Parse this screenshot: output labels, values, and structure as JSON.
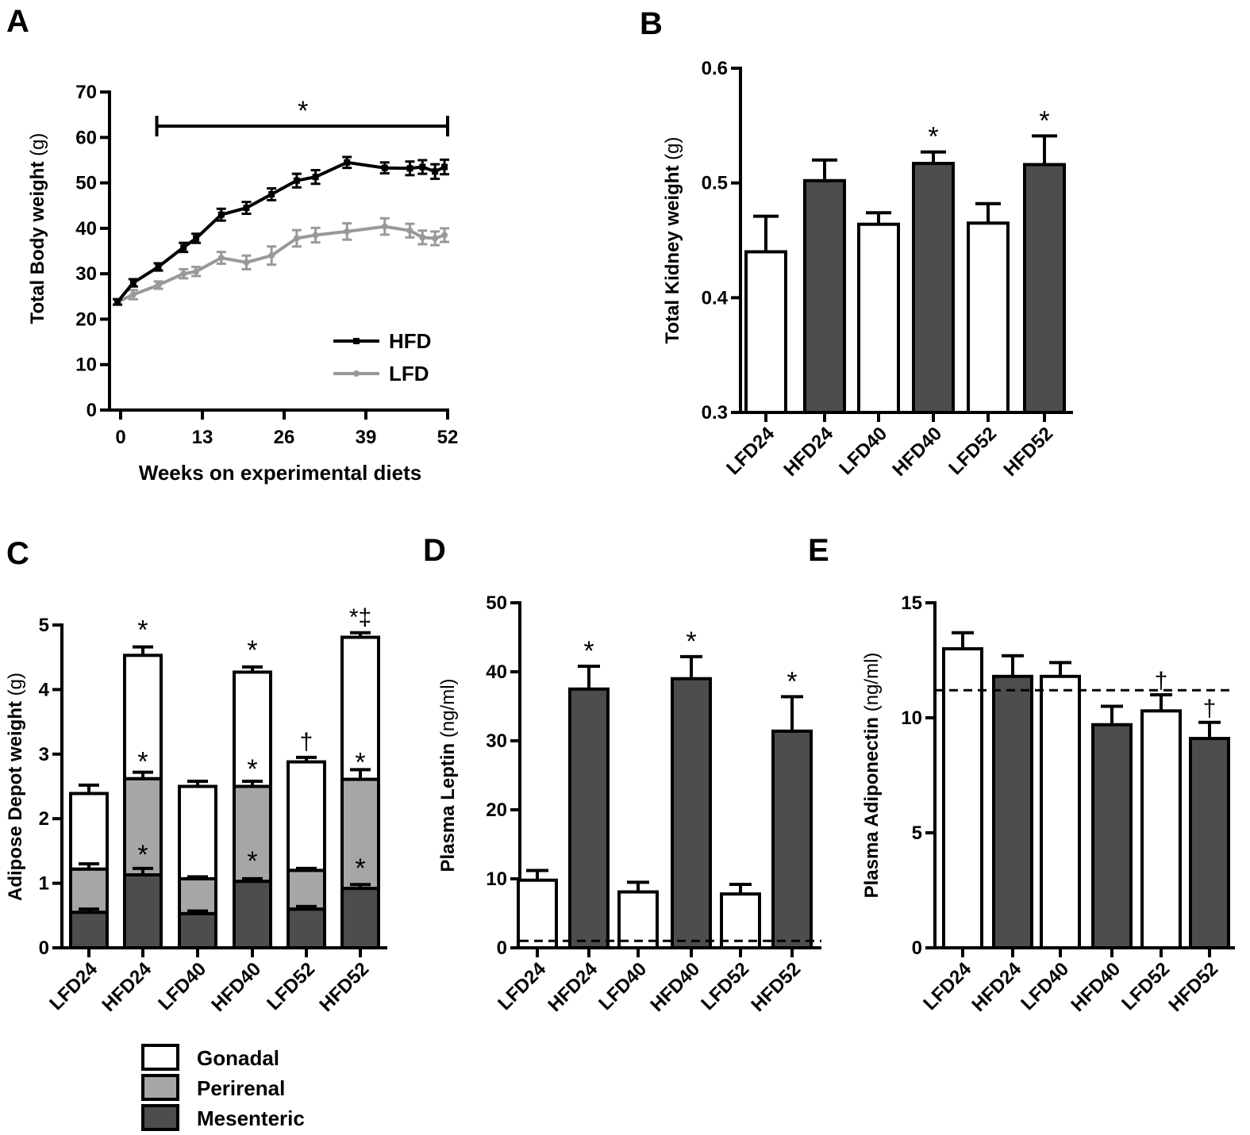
{
  "chart_data": [
    {
      "panel": "A",
      "type": "line",
      "xlabel": "Weeks on experimental diets",
      "ylabel": "Total Body weight",
      "yunit": "(g)",
      "xlim": [
        -1,
        52
      ],
      "ylim": [
        0,
        70
      ],
      "xticks": [
        "0",
        "13",
        "26",
        "39",
        "52"
      ],
      "yticks": [
        "0",
        "10",
        "20",
        "30",
        "40",
        "50",
        "60",
        "70"
      ],
      "series": [
        {
          "name": "HFD",
          "color": "#000000",
          "x": [
            -0.5,
            2,
            6,
            10,
            12,
            16,
            20,
            24,
            28,
            31,
            36,
            42,
            46,
            48,
            50,
            51.5
          ],
          "y": [
            23.8,
            28,
            31.5,
            35.8,
            37.8,
            43,
            44.5,
            47.5,
            50.5,
            51.3,
            54.5,
            53.3,
            53.2,
            53.5,
            52.5,
            53.5
          ],
          "err": [
            0.6,
            0.8,
            0.8,
            1.0,
            1.0,
            1.3,
            1.3,
            1.3,
            1.5,
            1.5,
            1.2,
            1.2,
            1.5,
            1.5,
            1.6,
            1.6
          ]
        },
        {
          "name": "LFD",
          "color": "#999999",
          "x": [
            -0.5,
            2,
            6,
            10,
            12,
            16,
            20,
            24,
            28,
            31,
            36,
            42,
            46,
            48,
            50,
            51.5
          ],
          "y": [
            23.8,
            25.4,
            27.5,
            30,
            30.5,
            33.5,
            32.5,
            34,
            37.8,
            38.5,
            39.3,
            40.4,
            39.5,
            38,
            37.8,
            38.5
          ],
          "err": [
            0.6,
            1.0,
            0.8,
            1.0,
            1.0,
            1.3,
            1.5,
            2.0,
            1.8,
            1.6,
            1.8,
            1.8,
            1.5,
            1.5,
            1.5,
            1.5
          ]
        }
      ],
      "significance_bar": {
        "x_start": 6,
        "x_end": 52,
        "y": 62.5,
        "label": "*"
      }
    },
    {
      "panel": "B",
      "type": "bar",
      "ylabel": "Total Kidney weight",
      "yunit": "(g)",
      "categories": [
        "LFD24",
        "HFD24",
        "LFD40",
        "HFD40",
        "LFD52",
        "HFD52"
      ],
      "values": [
        0.44,
        0.502,
        0.464,
        0.517,
        0.465,
        0.516
      ],
      "err": [
        0.031,
        0.018,
        0.01,
        0.01,
        0.017,
        0.025
      ],
      "fills": [
        "#ffffff",
        "#4d4d4d",
        "#ffffff",
        "#4d4d4d",
        "#ffffff",
        "#4d4d4d"
      ],
      "annotations": [
        "",
        "",
        "",
        "*",
        "",
        "*"
      ],
      "ylim": [
        0.3,
        0.6
      ],
      "yticks": [
        "0.3",
        "0.4",
        "0.5",
        "0.6"
      ]
    },
    {
      "panel": "C",
      "type": "bar",
      "stacked": true,
      "ylabel": "Adipose Depot weight",
      "yunit": "(g)",
      "categories": [
        "LFD24",
        "HFD24",
        "LFD40",
        "HFD40",
        "LFD52",
        "HFD52"
      ],
      "series": [
        {
          "name": "Mesenteric",
          "color": "#4d4d4d",
          "values": [
            0.55,
            1.13,
            0.53,
            1.03,
            0.6,
            0.92
          ],
          "err": [
            0.05,
            0.1,
            0.04,
            0.04,
            0.04,
            0.06
          ],
          "annotations": [
            "",
            "*",
            "",
            "*",
            "",
            "*"
          ]
        },
        {
          "name": "Perirenal",
          "color": "#a6a6a6",
          "values": [
            0.67,
            1.49,
            0.54,
            1.47,
            0.6,
            1.69
          ],
          "err": [
            0.08,
            0.1,
            0.03,
            0.08,
            0.03,
            0.15
          ],
          "annotations": [
            "",
            "*",
            "",
            "*",
            "",
            "*"
          ]
        },
        {
          "name": "Gonadal",
          "color": "#ffffff",
          "values": [
            1.17,
            1.91,
            1.43,
            1.77,
            1.68,
            2.2
          ],
          "err": [
            0.13,
            0.13,
            0.08,
            0.08,
            0.07,
            0.07
          ],
          "annotations": [
            "",
            "*",
            "",
            "*",
            "†",
            "*‡"
          ]
        }
      ],
      "ylim": [
        0,
        5
      ],
      "yticks": [
        "0",
        "1",
        "2",
        "3",
        "4",
        "5"
      ],
      "legend": [
        "Gonadal",
        "Perirenal",
        "Mesenteric"
      ]
    },
    {
      "panel": "D",
      "type": "bar",
      "ylabel": "Plasma Leptin",
      "yunit": "(ng/ml)",
      "categories": [
        "LFD24",
        "HFD24",
        "LFD40",
        "HFD40",
        "LFD52",
        "HFD52"
      ],
      "values": [
        9.8,
        37.5,
        8.1,
        39.0,
        7.8,
        31.4
      ],
      "err": [
        1.4,
        3.3,
        1.4,
        3.2,
        1.4,
        5.0
      ],
      "fills": [
        "#ffffff",
        "#4d4d4d",
        "#ffffff",
        "#4d4d4d",
        "#ffffff",
        "#4d4d4d"
      ],
      "annotations": [
        "",
        "*",
        "",
        "*",
        "",
        "*"
      ],
      "ylim": [
        0,
        50
      ],
      "yticks": [
        "0",
        "10",
        "20",
        "30",
        "40",
        "50"
      ],
      "reference_line": 1.0
    },
    {
      "panel": "E",
      "type": "bar",
      "ylabel": "Plasma Adiponectin",
      "yunit": "(ng/ml)",
      "categories": [
        "LFD24",
        "HFD24",
        "LFD40",
        "HFD40",
        "LFD52",
        "HFD52"
      ],
      "values": [
        13.0,
        11.8,
        11.8,
        9.7,
        10.3,
        9.1
      ],
      "err": [
        0.7,
        0.9,
        0.6,
        0.8,
        0.7,
        0.7
      ],
      "fills": [
        "#ffffff",
        "#4d4d4d",
        "#ffffff",
        "#4d4d4d",
        "#ffffff",
        "#4d4d4d"
      ],
      "annotations": [
        "",
        "",
        "",
        "",
        "†",
        "†"
      ],
      "ylim": [
        0,
        15
      ],
      "yticks": [
        "0",
        "5",
        "10",
        "15"
      ],
      "reference_line": 11.2
    }
  ]
}
